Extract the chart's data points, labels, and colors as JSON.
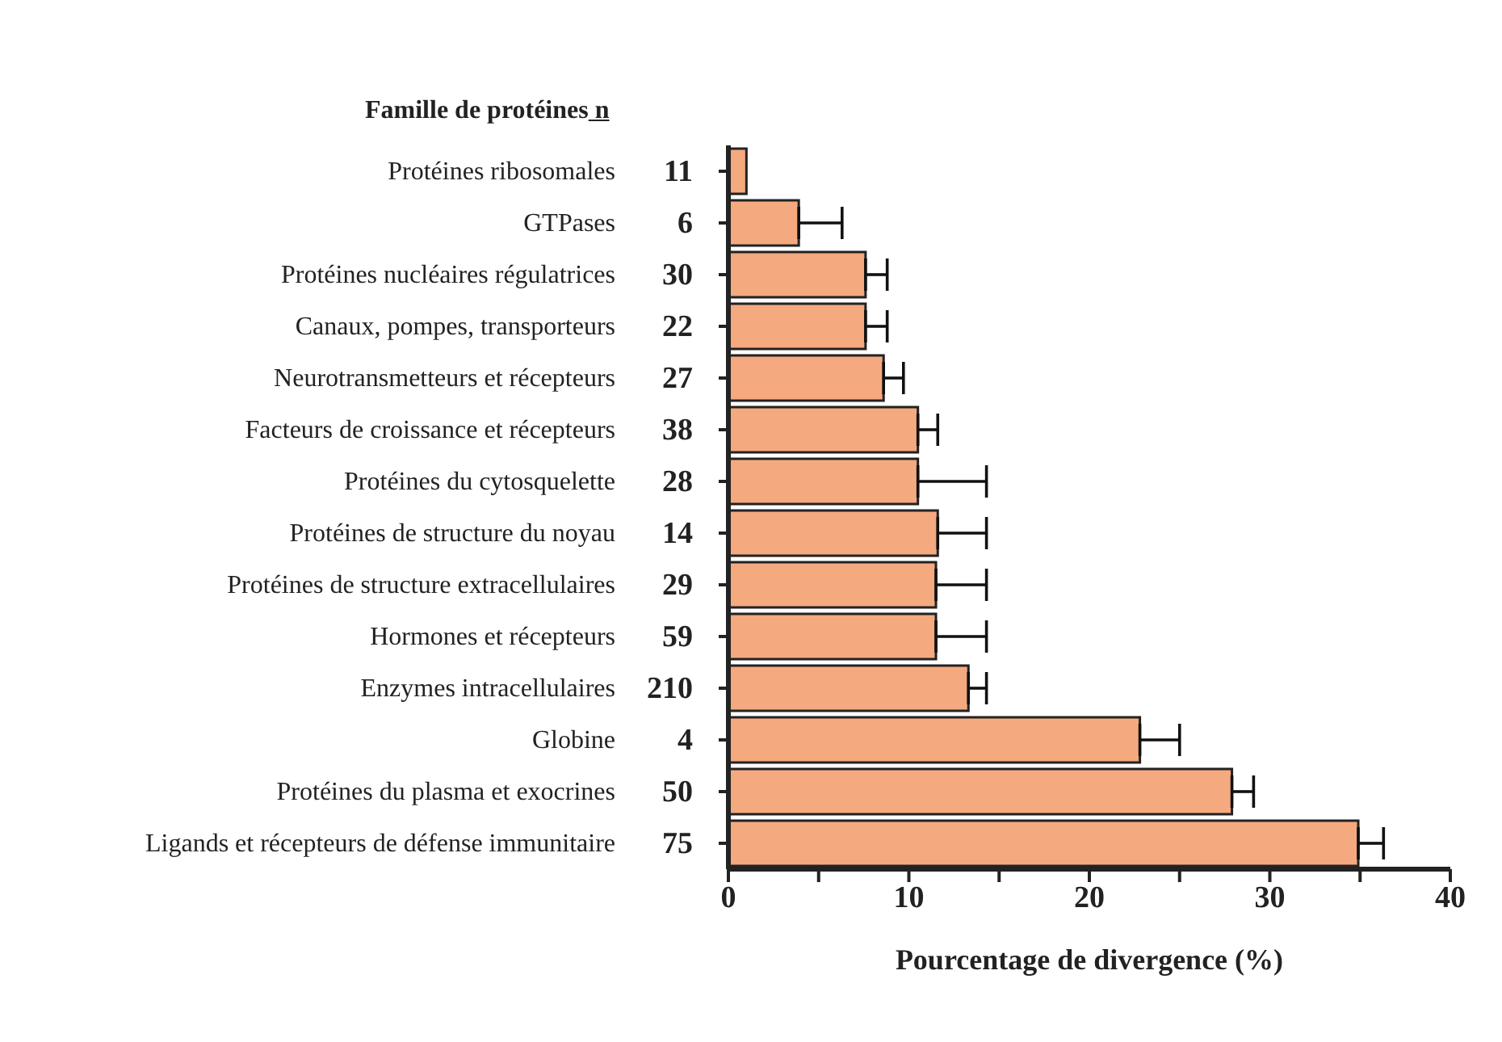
{
  "chart_data": {
    "type": "bar",
    "orientation": "horizontal",
    "ylabel": "Famille de protéines",
    "xlabel": "Pourcentage de divergence (%)",
    "categories": [
      "Protéines ribosomales",
      "GTPases",
      "Protéines nucléaires régulatrices",
      "Canaux, pompes, transporteurs",
      "Neurotransmetteurs et récepteurs",
      "Facteurs de croissance et récepteurs",
      "Protéines du cytosquelette",
      "Protéines de structure du  noyau",
      "Protéines de structure extracellulaires",
      "Hormones et récepteurs",
      "Enzymes intracellulaires",
      "Globine",
      "Protéines du plasma et exocrines",
      "Ligands et récepteurs de défense immunitaire"
    ],
    "values": [
      1.0,
      3.9,
      7.6,
      7.6,
      8.6,
      10.5,
      10.5,
      11.6,
      11.5,
      11.5,
      13.3,
      22.8,
      27.9,
      34.9
    ],
    "errors": [
      null,
      [
        3.9,
        6.3
      ],
      [
        7.6,
        8.8
      ],
      [
        7.6,
        8.8
      ],
      [
        8.6,
        9.7
      ],
      [
        10.5,
        11.6
      ],
      [
        10.5,
        14.3
      ],
      [
        11.6,
        14.3
      ],
      [
        11.5,
        14.3
      ],
      [
        11.5,
        14.3
      ],
      [
        13.3,
        14.3
      ],
      [
        22.8,
        25.0
      ],
      [
        27.9,
        29.1
      ],
      [
        34.9,
        36.3
      ]
    ],
    "color": "#f5a97f",
    "xlim": [
      0,
      40
    ],
    "xticks": [
      0,
      {
        "value": 5,
        "label": null
      },
      10,
      {
        "value": 15,
        "label": null
      },
      20,
      {
        "value": 25,
        "label": null
      },
      30,
      {
        "value": 35,
        "label": null
      },
      40
    ],
    "grid": false,
    "legend": false,
    "annotations": [
      "n",
      "11",
      "6",
      "30",
      "22",
      "27",
      "38",
      "28",
      "14",
      "29",
      "59",
      "210",
      "4",
      "50",
      "75"
    ]
  }
}
